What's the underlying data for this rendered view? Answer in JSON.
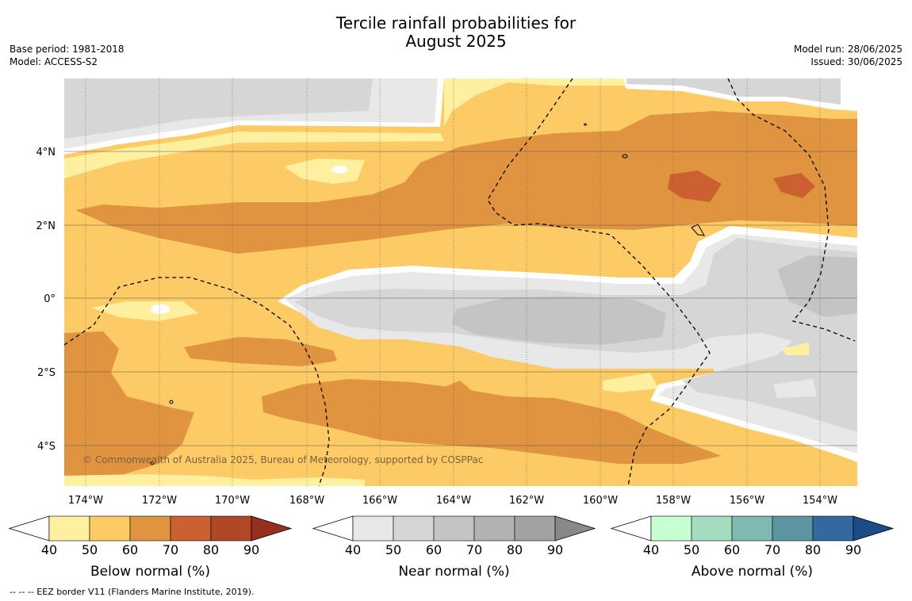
{
  "title_line1": "Tercile rainfall probabilities for",
  "title_line2": "August 2025",
  "meta_left": [
    "Base period: 1981-2018",
    "Model: ACCESS-S2"
  ],
  "meta_right": [
    "Model run: 28/06/2025",
    "Issued: 30/06/2025"
  ],
  "map": {
    "lon_labels": [
      "174°W",
      "172°W",
      "170°W",
      "168°W",
      "166°W",
      "164°W",
      "162°W",
      "160°W",
      "158°W",
      "156°W",
      "154°W"
    ],
    "lat_labels": [
      "4°N",
      "2°N",
      "0°",
      "2°S",
      "4°S"
    ],
    "copyright": "© Commonwealth of Australia 2025, Bureau of Meteorology, supported by COSPPac"
  },
  "colorbars": [
    {
      "label": "Below normal (%)",
      "ticks": [
        "40",
        "50",
        "60",
        "70",
        "80",
        "90"
      ],
      "colors": [
        "#fff0a0",
        "#fdcb65",
        "#e09440",
        "#cc6030",
        "#b04828",
        "#943020"
      ]
    },
    {
      "label": "Near normal (%)",
      "ticks": [
        "40",
        "50",
        "60",
        "70",
        "80",
        "90"
      ],
      "colors": [
        "#e8e8e8",
        "#d6d6d6",
        "#c4c4c4",
        "#b2b2b2",
        "#a2a2a2",
        "#888888"
      ]
    },
    {
      "label": "Above normal (%)",
      "ticks": [
        "40",
        "50",
        "60",
        "70",
        "80",
        "90"
      ],
      "colors": [
        "#c8ffd0",
        "#a4dcc0",
        "#80b8b2",
        "#5c94a2",
        "#3468a0",
        "#1c4c88"
      ]
    }
  ],
  "footnote": "--  --  -- EEZ border V11 (Flanders Marine Institute, 2019)."
}
